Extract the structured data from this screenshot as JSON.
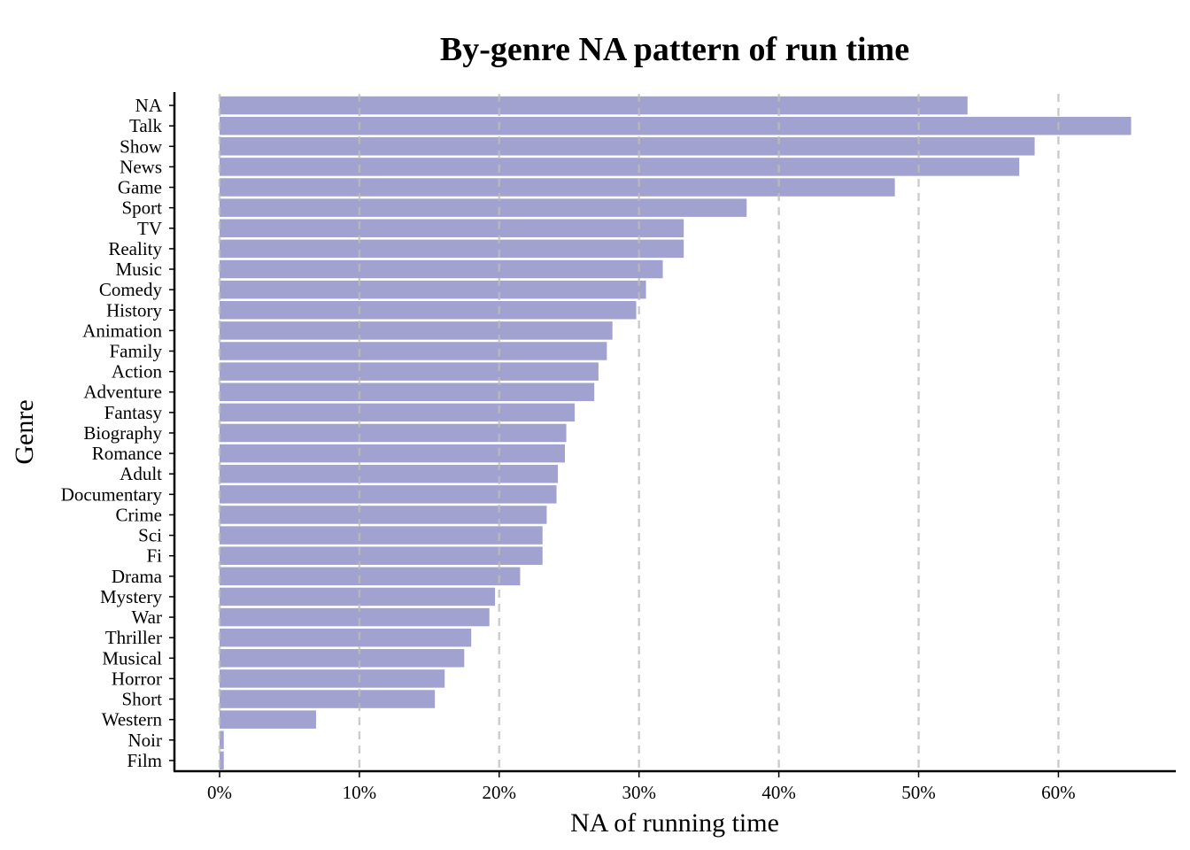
{
  "chart_data": {
    "type": "bar",
    "orientation": "horizontal",
    "title": "By-genre NA pattern of run time",
    "xlabel": "NA of running time",
    "ylabel": "Genre",
    "xlim": [
      0,
      0.65
    ],
    "xticks": [
      0,
      0.1,
      0.2,
      0.3,
      0.4,
      0.5,
      0.6
    ],
    "xtick_labels": [
      "0%",
      "10%",
      "20%",
      "30%",
      "40%",
      "50%",
      "60%"
    ],
    "grid": "vertical dashed at x ticks",
    "legend": "none",
    "bar_color": "#a2a2d0",
    "grid_color": "#bdbdbd",
    "categories": [
      "NA",
      "Talk",
      "Show",
      "News",
      "Game",
      "Sport",
      "TV",
      "Reality",
      "Music",
      "Comedy",
      "History",
      "Animation",
      "Family",
      "Action",
      "Adventure",
      "Fantasy",
      "Biography",
      "Romance",
      "Adult",
      "Documentary",
      "Crime",
      "Sci",
      "Fi",
      "Drama",
      "Mystery",
      "War",
      "Thriller",
      "Musical",
      "Horror",
      "Short",
      "Western",
      "Noir",
      "Film"
    ],
    "values": [
      0.535,
      0.652,
      0.583,
      0.572,
      0.483,
      0.377,
      0.332,
      0.332,
      0.317,
      0.305,
      0.298,
      0.281,
      0.277,
      0.271,
      0.268,
      0.254,
      0.248,
      0.247,
      0.242,
      0.241,
      0.234,
      0.231,
      0.231,
      0.215,
      0.197,
      0.193,
      0.18,
      0.175,
      0.161,
      0.154,
      0.069,
      0.003,
      0.003
    ]
  }
}
